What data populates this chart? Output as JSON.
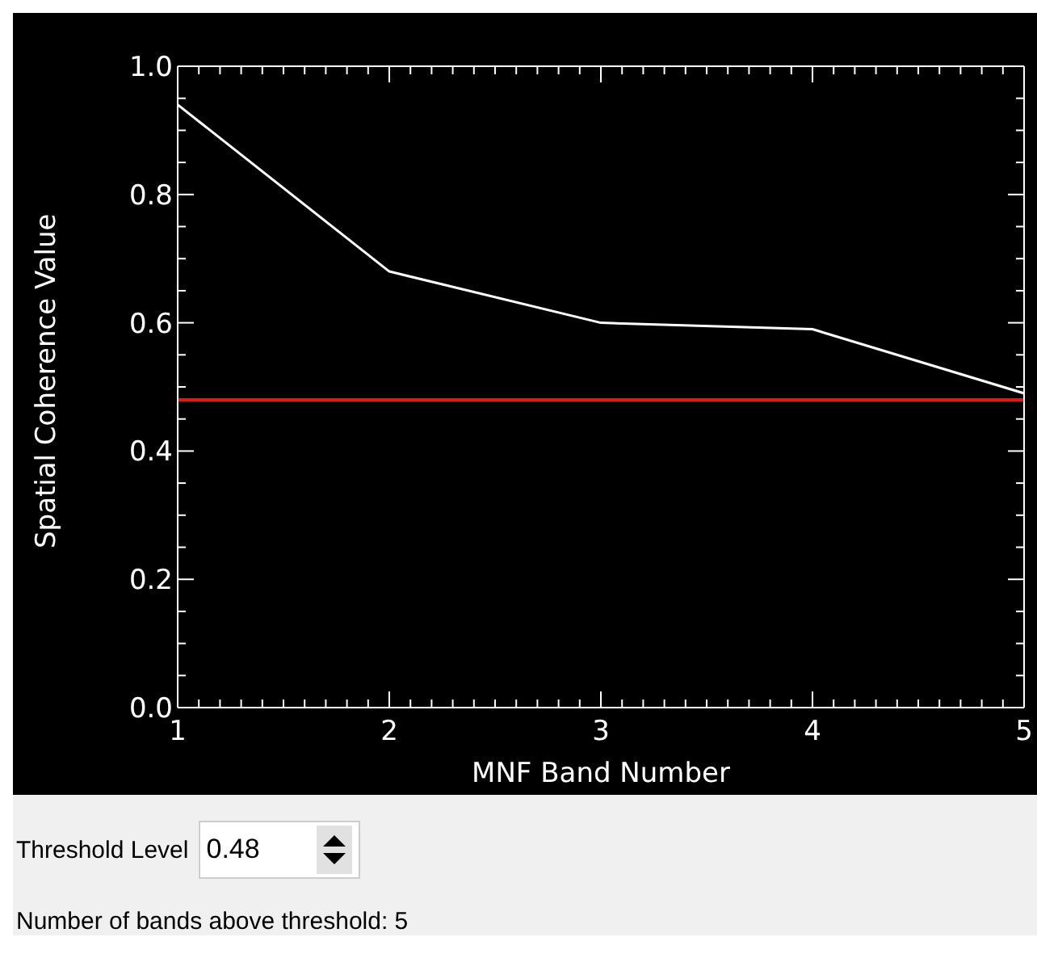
{
  "chart_data": {
    "type": "line",
    "xlabel": "MNF Band Number",
    "ylabel": "Spatial Coherence Value",
    "x": [
      1,
      2,
      3,
      4,
      5
    ],
    "series": [
      {
        "color": "#ffffff",
        "values": [
          0.94,
          0.68,
          0.6,
          0.59,
          0.49
        ]
      }
    ],
    "xlim": [
      1,
      5
    ],
    "xticks": [
      1,
      {
        "value": 1.1,
        "label": null
      },
      {
        "value": 1.2,
        "label": null
      },
      {
        "value": 1.3,
        "label": null
      },
      {
        "value": 1.4,
        "label": null
      },
      {
        "value": 1.5,
        "label": null
      },
      {
        "value": 1.6,
        "label": null
      },
      {
        "value": 1.7,
        "label": null
      },
      {
        "value": 1.8,
        "label": null
      },
      {
        "value": 1.9,
        "label": null
      },
      2,
      {
        "value": 2.1,
        "label": null
      },
      {
        "value": 2.2,
        "label": null
      },
      {
        "value": 2.3,
        "label": null
      },
      {
        "value": 2.4,
        "label": null
      },
      {
        "value": 2.5,
        "label": null
      },
      {
        "value": 2.6,
        "label": null
      },
      {
        "value": 2.7,
        "label": null
      },
      {
        "value": 2.8,
        "label": null
      },
      {
        "value": 2.9,
        "label": null
      },
      3,
      {
        "value": 3.1,
        "label": null
      },
      {
        "value": 3.2,
        "label": null
      },
      {
        "value": 3.3,
        "label": null
      },
      {
        "value": 3.4,
        "label": null
      },
      {
        "value": 3.5,
        "label": null
      },
      {
        "value": 3.6,
        "label": null
      },
      {
        "value": 3.7,
        "label": null
      },
      {
        "value": 3.8,
        "label": null
      },
      {
        "value": 3.9,
        "label": null
      },
      4,
      {
        "value": 4.1,
        "label": null
      },
      {
        "value": 4.2,
        "label": null
      },
      {
        "value": 4.3,
        "label": null
      },
      {
        "value": 4.4,
        "label": null
      },
      {
        "value": 4.5,
        "label": null
      },
      {
        "value": 4.6,
        "label": null
      },
      {
        "value": 4.7,
        "label": null
      },
      {
        "value": 4.8,
        "label": null
      },
      {
        "value": 4.9,
        "label": null
      },
      5
    ],
    "ylim": [
      0,
      1
    ],
    "yticks": [
      {
        "value": 0,
        "label": "0.0"
      },
      {
        "value": 0.05,
        "label": null
      },
      {
        "value": 0.1,
        "label": null
      },
      {
        "value": 0.15,
        "label": null
      },
      {
        "value": 0.2,
        "label": "0.2"
      },
      {
        "value": 0.25,
        "label": null
      },
      {
        "value": 0.3,
        "label": null
      },
      {
        "value": 0.35,
        "label": null
      },
      {
        "value": 0.4,
        "label": "0.4"
      },
      {
        "value": 0.45,
        "label": null
      },
      {
        "value": 0.5,
        "label": null
      },
      {
        "value": 0.55,
        "label": null
      },
      {
        "value": 0.6,
        "label": "0.6"
      },
      {
        "value": 0.65,
        "label": null
      },
      {
        "value": 0.7,
        "label": null
      },
      {
        "value": 0.75,
        "label": null
      },
      {
        "value": 0.8,
        "label": "0.8"
      },
      {
        "value": 0.85,
        "label": null
      },
      {
        "value": 0.9,
        "label": null
      },
      {
        "value": 0.95,
        "label": null
      },
      {
        "value": 1,
        "label": "1.0"
      }
    ],
    "ref_lines": [
      {
        "axis": "y",
        "value": 0.48,
        "color": "#e8141a"
      }
    ],
    "annotations": [
      "Threshold Level",
      "0.48",
      "Number of bands above threshold: 5"
    ],
    "grid": false,
    "legend": false,
    "marker": "none",
    "line_style": "solid"
  }
}
